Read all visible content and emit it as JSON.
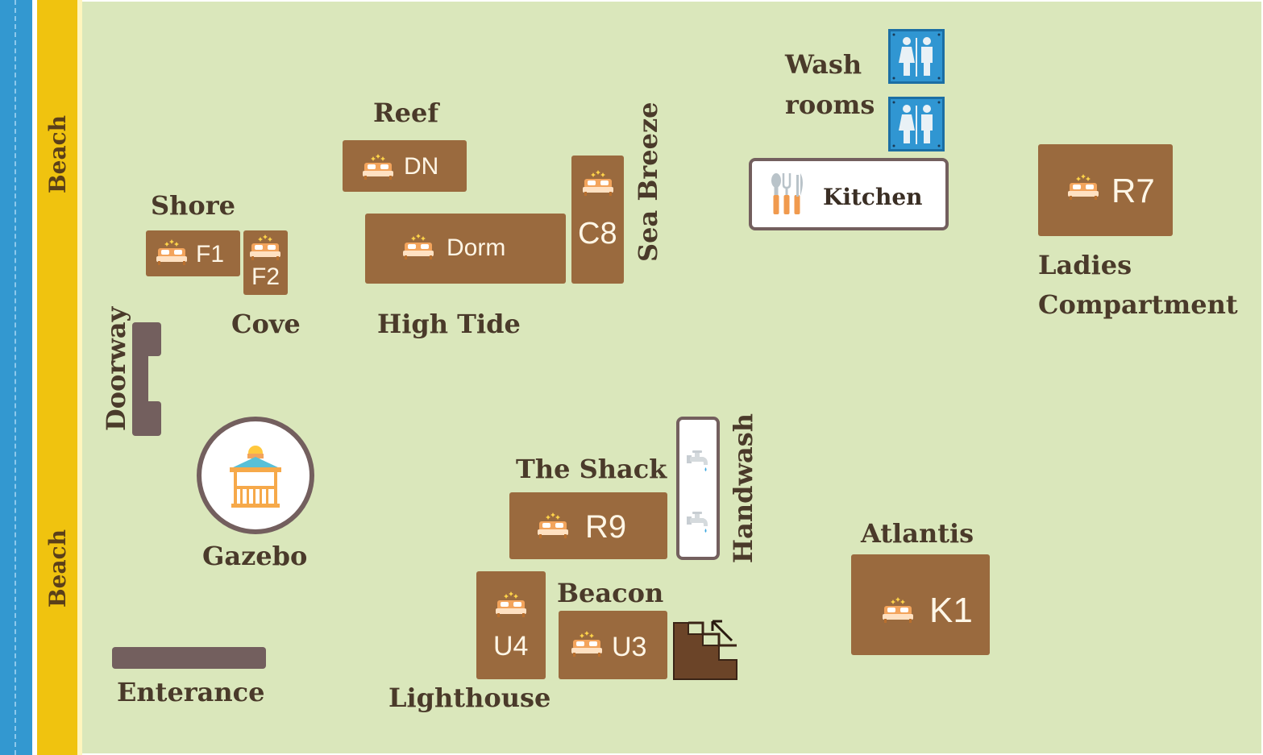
{
  "colors": {
    "sea": "#3398d0",
    "beach": "#f0c30f",
    "ground": "#dae7bb",
    "room": "#9a6a3e",
    "wall": "#735f5e",
    "label": "#4a3a2a"
  },
  "beach_labels": [
    "Beach",
    "Beach"
  ],
  "rooms": {
    "dn": {
      "code": "DN",
      "group": "Reef"
    },
    "f1": {
      "code": "F1",
      "group": "Shore"
    },
    "f2": {
      "code": "F2",
      "group": "Cove"
    },
    "dorm": {
      "code": "Dorm",
      "group": "High Tide"
    },
    "c8": {
      "code": "C8",
      "group": "Sea Breeze"
    },
    "r7": {
      "code": "R7",
      "group": "Ladies Compartment"
    },
    "r9": {
      "code": "R9",
      "group": "The Shack"
    },
    "u4": {
      "code": "U4",
      "group": "Lighthouse"
    },
    "u3": {
      "code": "U3",
      "group": "Beacon"
    },
    "k1": {
      "code": "K1",
      "group": "Atlantis"
    }
  },
  "labels": {
    "reef": "Reef",
    "shore": "Shore",
    "cove": "Cove",
    "high_tide": "High Tide",
    "sea_breeze": "Sea Breeze",
    "wash_line1": "Wash",
    "wash_line2": "rooms",
    "kitchen": "Kitchen",
    "ladies_line1": "Ladies",
    "ladies_line2": "Compartment",
    "doorway": "Doorway",
    "gazebo": "Gazebo",
    "enterance": "Enterance",
    "the_shack": "The Shack",
    "handwash": "Handwash",
    "beacon": "Beacon",
    "lighthouse": "Lighthouse",
    "atlantis": "Atlantis"
  },
  "icons": [
    "bed-icon",
    "restroom-icon",
    "cutlery-icon",
    "faucet-icon",
    "gazebo-icon",
    "stairs-icon"
  ]
}
